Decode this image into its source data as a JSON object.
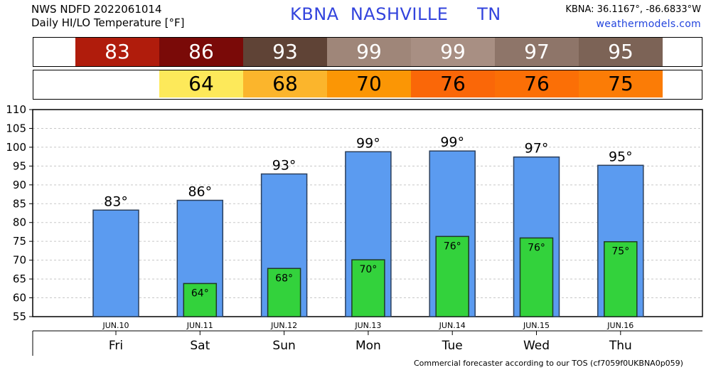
{
  "header": {
    "source_line": "NWS NDFD 2022061014",
    "product_line": "Daily HI/LO Temperature [°F]",
    "station": "KBNA",
    "city": "NASHVILLE",
    "state": "TN",
    "coords": "KBNA: 36.1167°, -86.6833°W",
    "site": "weathermodels.com"
  },
  "footer": "Commercial forecaster according to our TOS (cf7059f0UKBNA0p059)",
  "hi_strip": [
    {
      "label": "83",
      "color": "#b01c0c",
      "text_color": "#ffffff"
    },
    {
      "label": "86",
      "color": "#7a0a08",
      "text_color": "#ffffff"
    },
    {
      "label": "93",
      "color": "#5f4336",
      "text_color": "#ffffff"
    },
    {
      "label": "99",
      "color": "#9f8679",
      "text_color": "#ffffff"
    },
    {
      "label": "99",
      "color": "#a88f83",
      "text_color": "#ffffff"
    },
    {
      "label": "97",
      "color": "#8e7569",
      "text_color": "#ffffff"
    },
    {
      "label": "95",
      "color": "#7c6356",
      "text_color": "#ffffff"
    }
  ],
  "lo_strip": [
    {
      "label": "",
      "color": "#ffffff",
      "text_color": "#000000"
    },
    {
      "label": "64",
      "color": "#fde95a",
      "text_color": "#000000"
    },
    {
      "label": "68",
      "color": "#fbb52c",
      "text_color": "#000000"
    },
    {
      "label": "70",
      "color": "#fb9605",
      "text_color": "#000000"
    },
    {
      "label": "76",
      "color": "#fa6708",
      "text_color": "#000000"
    },
    {
      "label": "76",
      "color": "#fb6f06",
      "text_color": "#000000"
    },
    {
      "label": "75",
      "color": "#fb7c06",
      "text_color": "#000000"
    }
  ],
  "chart_data": {
    "type": "bar",
    "categories": [
      "Fri",
      "Sat",
      "Sun",
      "Mon",
      "Tue",
      "Wed",
      "Thu"
    ],
    "dates": [
      "JUN.10",
      "JUN.11",
      "JUN.12",
      "JUN.13",
      "JUN.14",
      "JUN.15",
      "JUN.16"
    ],
    "series": [
      {
        "values": [
          83.3,
          85.9,
          92.9,
          98.8,
          99.0,
          97.4,
          95.2
        ],
        "labels": [
          "83°",
          "86°",
          "93°",
          "99°",
          "99°",
          "97°",
          "95°"
        ],
        "color": "#5b9bf0"
      },
      {
        "values": [
          null,
          63.8,
          67.8,
          70.1,
          76.3,
          75.9,
          74.9
        ],
        "labels": [
          "",
          "64°",
          "68°",
          "70°",
          "76°",
          "76°",
          "75°"
        ],
        "color": "#33d23c"
      }
    ],
    "ylim": [
      55,
      110
    ],
    "yticks": [
      55,
      60,
      65,
      70,
      75,
      80,
      85,
      90,
      95,
      100,
      105,
      110
    ],
    "ytick_labels": [
      "55",
      "60",
      "65",
      "70",
      "75",
      "80",
      "85",
      "90",
      "95",
      "100",
      "105",
      "110"
    ],
    "grid": true
  }
}
